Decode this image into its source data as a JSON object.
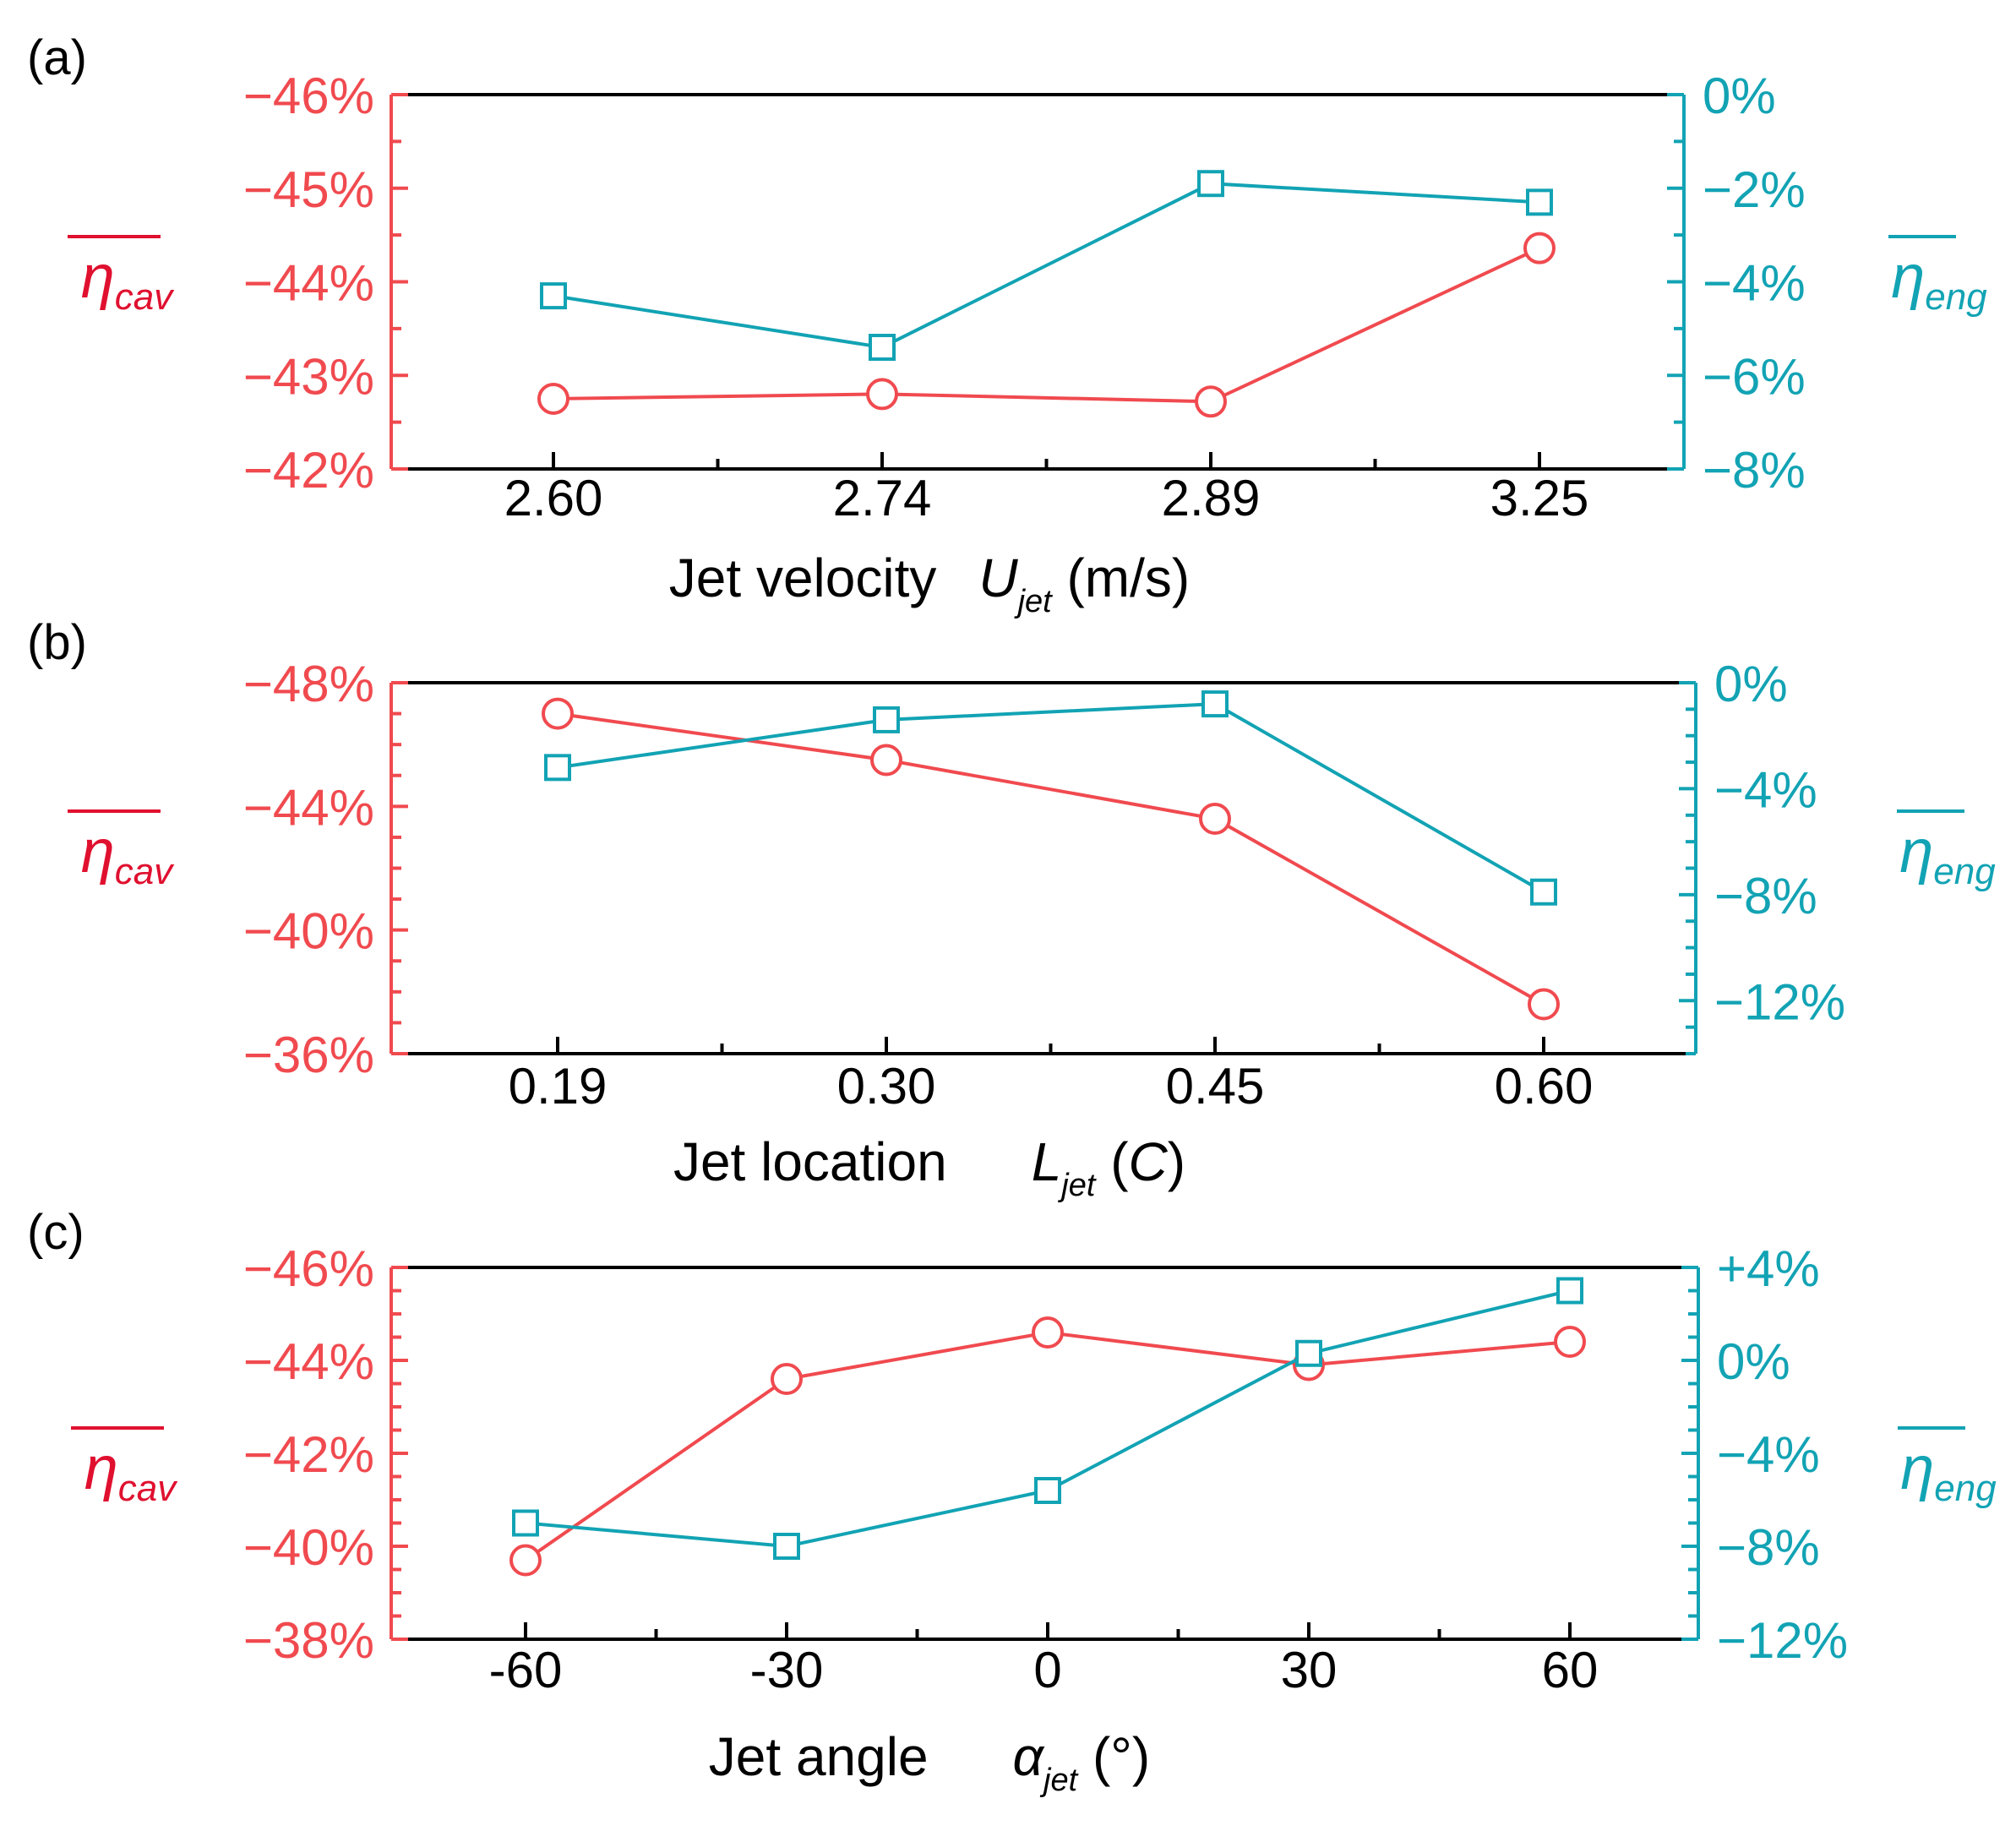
{
  "colors": {
    "cav": "#f04a4f",
    "eng": "#12a3b4",
    "axis": "#000000",
    "cav_label": "#e0102f"
  },
  "labels": {
    "cav_symbol": "η",
    "cav_sub": "cav",
    "eng_symbol": "η",
    "eng_sub": "eng"
  },
  "chart_data": [
    {
      "panel_label": "(a)",
      "type": "line",
      "categories": [
        "2.60",
        "2.74",
        "2.89",
        "3.25"
      ],
      "xlabel_text": "Jet velocity",
      "xlabel_var": "U",
      "xlabel_sub": "jet",
      "xlabel_unit": " (m/s)",
      "left_axis": {
        "ylim": [
          -46,
          -42
        ],
        "ticks": [
          -46,
          -45,
          -44,
          -43,
          -42
        ],
        "tick_labels": [
          "−46%",
          "−45%",
          "−44%",
          "−43%",
          "−42%"
        ],
        "minor_step": 0.5
      },
      "right_axis": {
        "ylim": [
          0,
          -8
        ],
        "ticks": [
          0,
          -2,
          -4,
          -6,
          -8
        ],
        "tick_labels": [
          "0%",
          "−2%",
          "−4%",
          "−6%",
          "−8%"
        ],
        "minor_step": 1
      },
      "series": [
        {
          "name": "η̄cav",
          "axis": "left",
          "marker": "circle",
          "values": [
            -42.75,
            -42.8,
            -42.72,
            -44.36
          ]
        },
        {
          "name": "η̄eng",
          "axis": "right",
          "marker": "square",
          "values": [
            -4.3,
            -5.4,
            -1.9,
            -2.3
          ]
        }
      ]
    },
    {
      "panel_label": "(b)",
      "type": "line",
      "categories": [
        "0.19",
        "0.30",
        "0.45",
        "0.60"
      ],
      "xlabel_text": "Jet location",
      "xlabel_var": "L",
      "xlabel_sub": "jet",
      "xlabel_unit_var": "C",
      "left_axis": {
        "ylim": [
          -48,
          -36
        ],
        "ticks": [
          -48,
          -44,
          -40,
          -36
        ],
        "tick_labels": [
          "−48%",
          "−44%",
          "−40%",
          "−36%"
        ],
        "minor_step": 1
      },
      "right_axis": {
        "ylim": [
          0,
          -14
        ],
        "ticks": [
          0,
          -4,
          -8,
          -12
        ],
        "tick_labels": [
          "0%",
          "−4%",
          "−8%",
          "−12%"
        ],
        "minor_step": 1
      },
      "series": [
        {
          "name": "η̄cav",
          "axis": "left",
          "marker": "circle",
          "values": [
            -47.0,
            -45.5,
            -43.6,
            -37.6
          ]
        },
        {
          "name": "η̄eng",
          "axis": "right",
          "marker": "square",
          "values": [
            -3.2,
            -1.4,
            -0.8,
            -7.9
          ]
        }
      ]
    },
    {
      "panel_label": "(c)",
      "type": "line",
      "categories": [
        "-60",
        "-30",
        "0",
        "30",
        "60"
      ],
      "xlabel_text": "Jet angle",
      "xlabel_var": "α",
      "xlabel_sub": "jet",
      "xlabel_unit": " (°)",
      "left_axis": {
        "ylim": [
          -46,
          -38
        ],
        "ticks": [
          -46,
          -44,
          -42,
          -40,
          -38
        ],
        "tick_labels": [
          "−46%",
          "−44%",
          "−42%",
          "−40%",
          "−38%"
        ],
        "minor_step": 0.5
      },
      "right_axis": {
        "ylim": [
          4,
          -12
        ],
        "ticks": [
          4,
          0,
          -4,
          -8,
          -12
        ],
        "tick_labels": [
          "+4%",
          "0%",
          "−4%",
          "−8%",
          "−12%"
        ],
        "minor_step": 1
      },
      "series": [
        {
          "name": "η̄cav",
          "axis": "left",
          "marker": "circle",
          "values": [
            -39.7,
            -43.6,
            -44.6,
            -43.9,
            -44.4
          ]
        },
        {
          "name": "η̄eng",
          "axis": "right",
          "marker": "square",
          "values": [
            -7.0,
            -8.0,
            -5.6,
            0.3,
            3.0
          ]
        }
      ]
    }
  ]
}
